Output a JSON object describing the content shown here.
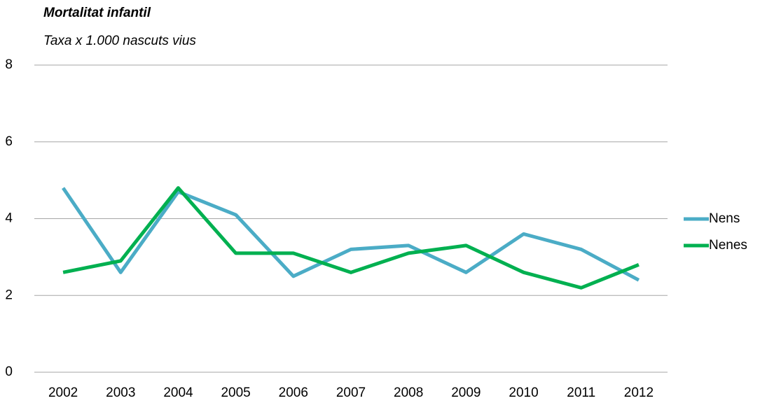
{
  "chart_data": {
    "type": "line",
    "title": "Mortalitat infantil",
    "subtitle": "Taxa x 1.000 nascuts vius",
    "categories": [
      "2002",
      "2003",
      "2004",
      "2005",
      "2006",
      "2007",
      "2008",
      "2009",
      "2010",
      "2011",
      "2012"
    ],
    "series": [
      {
        "name": "Nens",
        "color": "#4bacc6",
        "values": [
          4.8,
          2.6,
          4.7,
          4.1,
          2.5,
          3.2,
          3.3,
          2.6,
          3.6,
          3.2,
          2.4
        ]
      },
      {
        "name": "Nenes",
        "color": "#00b050",
        "values": [
          2.6,
          2.9,
          4.8,
          3.1,
          3.1,
          2.6,
          3.1,
          3.3,
          2.6,
          2.2,
          2.8
        ]
      }
    ],
    "ylim": [
      0,
      8
    ],
    "yticks": [
      0,
      2,
      4,
      6,
      8
    ],
    "grid": true,
    "legend": "right"
  }
}
